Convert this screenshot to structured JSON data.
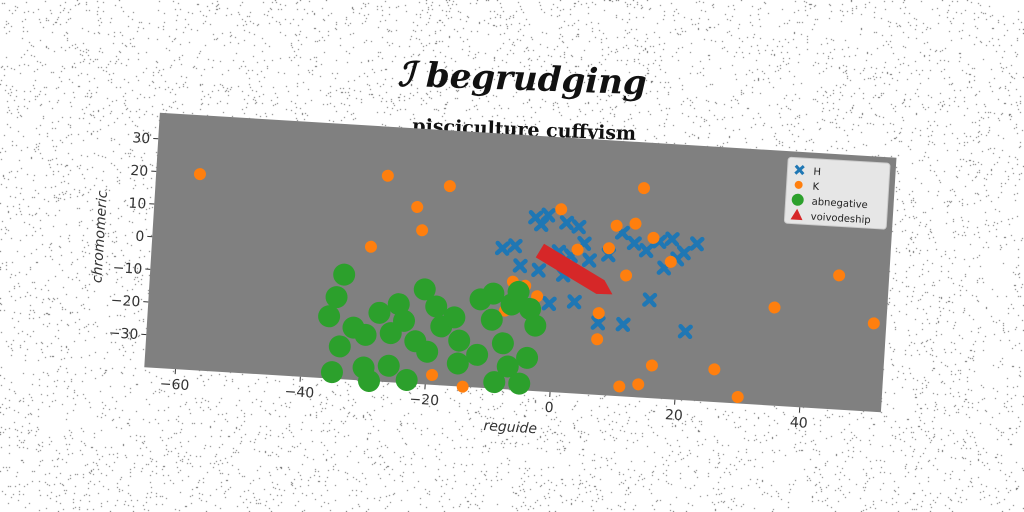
{
  "chart_data": {
    "type": "scatter",
    "suptitle": "ℐ begrudging",
    "title": "pisciculture cuffyism",
    "xlabel": "reguide",
    "ylabel": "chromomeric",
    "xlim": [
      -65,
      53
    ],
    "ylim": [
      -40,
      38
    ],
    "xticks": [
      -60,
      -40,
      -20,
      0,
      20,
      40
    ],
    "yticks": [
      -30,
      -20,
      -10,
      0,
      10,
      20,
      30
    ],
    "grid": false,
    "legend_position": "top-right",
    "plot_background": "#808080",
    "series": [
      {
        "name": "H",
        "marker": "x",
        "color": "#1f77b4",
        "points": [
          [
            -4,
            13
          ],
          [
            -2,
            14
          ],
          [
            1,
            12
          ],
          [
            3,
            11
          ],
          [
            -3,
            11
          ],
          [
            4,
            6
          ],
          [
            -9,
            3
          ],
          [
            -7,
            4
          ],
          [
            0,
            3
          ],
          [
            2,
            2
          ],
          [
            5,
            1
          ],
          [
            8,
            3
          ],
          [
            10,
            10
          ],
          [
            12,
            7
          ],
          [
            14,
            5
          ],
          [
            16,
            8
          ],
          [
            18,
            9
          ],
          [
            20,
            5
          ],
          [
            22,
            8
          ],
          [
            19,
            3
          ],
          [
            17,
            0
          ],
          [
            15,
            -10
          ],
          [
            21,
            -19
          ],
          [
            7,
            -18
          ],
          [
            11,
            -18
          ],
          [
            -6,
            -2
          ],
          [
            -3,
            -3
          ],
          [
            1,
            -4
          ],
          [
            -1,
            -13
          ],
          [
            3,
            -12
          ]
        ]
      },
      {
        "name": "K",
        "marker": "o",
        "color": "#ff7f0e",
        "points": [
          [
            -58,
            20
          ],
          [
            -28,
            23
          ],
          [
            -18,
            21
          ],
          [
            -23,
            14
          ],
          [
            -22,
            7
          ],
          [
            -30,
            1
          ],
          [
            0,
            16
          ],
          [
            12,
            13
          ],
          [
            13,
            24
          ],
          [
            15,
            9
          ],
          [
            9,
            12
          ],
          [
            3,
            4
          ],
          [
            8,
            5
          ],
          [
            18,
            2
          ],
          [
            11,
            -3
          ],
          [
            -7,
            -7
          ],
          [
            -5,
            -8
          ],
          [
            -3,
            -11
          ],
          [
            7,
            -15
          ],
          [
            7,
            -23
          ],
          [
            -8,
            -16
          ],
          [
            16,
            -30
          ],
          [
            26,
            -30
          ],
          [
            45,
            1
          ],
          [
            35,
            -10
          ],
          [
            51,
            -13
          ],
          [
            11,
            -37
          ],
          [
            14,
            -36
          ],
          [
            30,
            -38
          ],
          [
            -19,
            -37
          ],
          [
            -14,
            -40
          ]
        ]
      },
      {
        "name": "abnegative",
        "marker": "o",
        "color": "#2ca02c",
        "size": 11,
        "points": [
          [
            -34,
            -8
          ],
          [
            -35,
            -15
          ],
          [
            -36,
            -21
          ],
          [
            -32,
            -24
          ],
          [
            -34,
            -30
          ],
          [
            -30,
            -26
          ],
          [
            -28,
            -19
          ],
          [
            -26,
            -25
          ],
          [
            -25,
            -16
          ],
          [
            -24,
            -21
          ],
          [
            -22,
            -27
          ],
          [
            -21,
            -11
          ],
          [
            -19,
            -16
          ],
          [
            -18,
            -22
          ],
          [
            -20,
            -30
          ],
          [
            -16,
            -19
          ],
          [
            -15,
            -26
          ],
          [
            -12,
            -13
          ],
          [
            -10,
            -11
          ],
          [
            -10,
            -19
          ],
          [
            -12,
            -30
          ],
          [
            -8,
            -26
          ],
          [
            -7,
            -14
          ],
          [
            -4,
            -15
          ],
          [
            -4,
            -30
          ],
          [
            -7,
            -33
          ],
          [
            -3,
            -20
          ],
          [
            -6,
            -10
          ],
          [
            -30,
            -36
          ],
          [
            -26,
            -35
          ],
          [
            -35,
            -38
          ],
          [
            -29,
            -40
          ],
          [
            -23,
            -39
          ],
          [
            -15,
            -33
          ],
          [
            -9,
            -38
          ],
          [
            -5,
            -38
          ]
        ]
      },
      {
        "name": "voivodeship",
        "marker": "arrow",
        "color": "#d62728",
        "from": [
          -3,
          3
        ],
        "to": [
          9,
          -9
        ]
      }
    ]
  }
}
